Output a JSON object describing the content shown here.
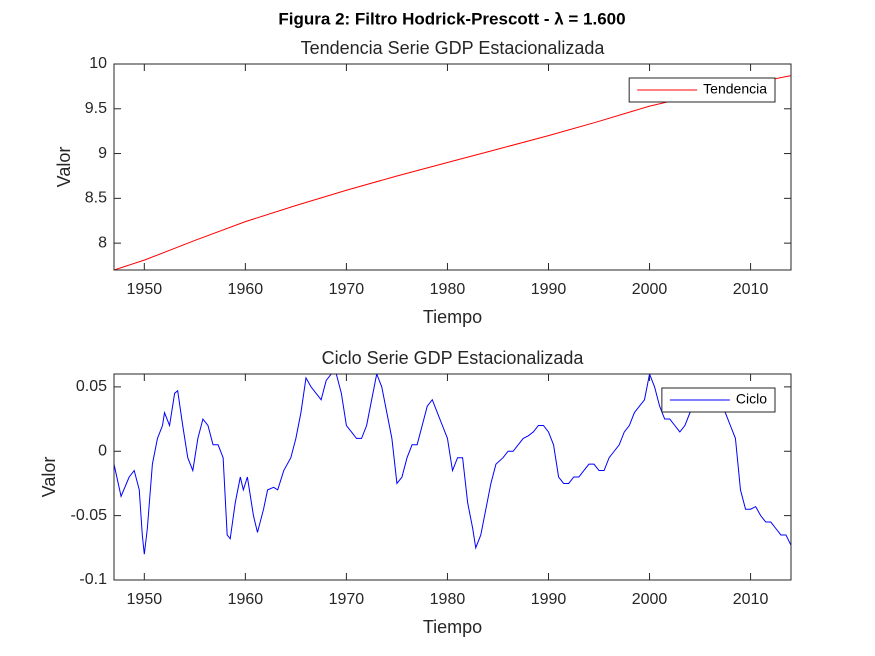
{
  "title": "Figura 2: Filtro Hodrick-Prescott - λ = 1.600",
  "chart_data": [
    {
      "type": "line",
      "title": "Tendencia Serie GDP Estacionalizada",
      "xlabel": "Tiempo",
      "ylabel": "Valor",
      "x": [
        1947,
        1950,
        1955,
        1960,
        1965,
        1970,
        1975,
        1980,
        1985,
        1990,
        1995,
        2000,
        2005,
        2010,
        2014
      ],
      "series": [
        {
          "name": "Tendencia",
          "color": "#ff0000",
          "values": [
            7.7,
            7.81,
            8.03,
            8.24,
            8.42,
            8.59,
            8.75,
            8.9,
            9.05,
            9.2,
            9.36,
            9.53,
            9.66,
            9.78,
            9.87
          ]
        }
      ],
      "xlim": [
        1947,
        2014
      ],
      "ylim": [
        7.7,
        10
      ],
      "xticks": [
        1950,
        1960,
        1970,
        1980,
        1990,
        2000,
        2010
      ],
      "yticks": [
        8,
        8.5,
        9,
        9.5,
        10
      ],
      "grid": false,
      "legend": "northeast"
    },
    {
      "type": "line",
      "title": "Ciclo Serie GDP Estacionalizada",
      "xlabel": "Tiempo",
      "ylabel": "Valor",
      "x": [
        1947.0,
        1947.7,
        1948.5,
        1949.0,
        1949.5,
        1949.8,
        1950.0,
        1950.3,
        1950.8,
        1951.3,
        1951.8,
        1952.0,
        1952.5,
        1953.0,
        1953.3,
        1953.8,
        1954.3,
        1954.8,
        1955.3,
        1955.8,
        1956.3,
        1956.8,
        1957.3,
        1957.8,
        1958.2,
        1958.5,
        1959.0,
        1959.5,
        1959.8,
        1960.2,
        1960.8,
        1961.2,
        1961.8,
        1962.2,
        1962.8,
        1963.2,
        1963.8,
        1964.5,
        1965.0,
        1965.5,
        1966.0,
        1966.5,
        1967.0,
        1967.5,
        1968.0,
        1968.5,
        1969.0,
        1969.5,
        1970.0,
        1970.5,
        1971.0,
        1971.5,
        1972.0,
        1972.5,
        1973.0,
        1973.5,
        1974.0,
        1974.5,
        1975.0,
        1975.5,
        1976.0,
        1976.5,
        1977.0,
        1977.5,
        1978.0,
        1978.5,
        1979.0,
        1979.5,
        1980.0,
        1980.5,
        1981.0,
        1981.5,
        1982.0,
        1982.5,
        1982.8,
        1983.3,
        1983.8,
        1984.3,
        1984.8,
        1985.5,
        1986.0,
        1986.5,
        1987.0,
        1987.5,
        1988.0,
        1988.5,
        1989.0,
        1989.5,
        1990.0,
        1990.5,
        1991.0,
        1991.5,
        1992.0,
        1992.5,
        1993.0,
        1993.5,
        1994.0,
        1994.5,
        1995.0,
        1995.5,
        1996.0,
        1996.5,
        1997.0,
        1997.5,
        1998.0,
        1998.5,
        1999.0,
        1999.5,
        2000.0,
        2000.5,
        2001.0,
        2001.5,
        2002.0,
        2002.5,
        2003.0,
        2003.5,
        2004.0,
        2005.0,
        2006.0,
        2007.0,
        2007.5,
        2008.0,
        2008.5,
        2009.0,
        2009.5,
        2010.0,
        2010.5,
        2011.0,
        2011.5,
        2012.0,
        2012.5,
        2013.0,
        2013.5,
        2014.0
      ],
      "series": [
        {
          "name": "Ciclo",
          "color": "#0000ff",
          "values": [
            -0.01,
            -0.035,
            -0.02,
            -0.015,
            -0.03,
            -0.065,
            -0.08,
            -0.06,
            -0.01,
            0.01,
            0.02,
            0.03,
            0.02,
            0.045,
            0.047,
            0.02,
            -0.005,
            -0.015,
            0.01,
            0.025,
            0.02,
            0.005,
            0.005,
            -0.005,
            -0.065,
            -0.068,
            -0.04,
            -0.02,
            -0.03,
            -0.02,
            -0.05,
            -0.063,
            -0.045,
            -0.03,
            -0.028,
            -0.03,
            -0.015,
            -0.005,
            0.01,
            0.03,
            0.057,
            0.05,
            0.045,
            0.04,
            0.055,
            0.06,
            0.06,
            0.045,
            0.02,
            0.015,
            0.01,
            0.01,
            0.02,
            0.04,
            0.06,
            0.05,
            0.03,
            0.01,
            -0.025,
            -0.02,
            -0.005,
            0.005,
            0.005,
            0.02,
            0.035,
            0.04,
            0.03,
            0.02,
            0.01,
            -0.015,
            -0.005,
            -0.005,
            -0.04,
            -0.06,
            -0.075,
            -0.065,
            -0.045,
            -0.025,
            -0.01,
            -0.005,
            0,
            0,
            0.005,
            0.01,
            0.012,
            0.015,
            0.02,
            0.02,
            0.015,
            0.005,
            -0.02,
            -0.025,
            -0.025,
            -0.02,
            -0.02,
            -0.015,
            -0.01,
            -0.01,
            -0.015,
            -0.015,
            -0.005,
            0,
            0.005,
            0.015,
            0.02,
            0.03,
            0.035,
            0.04,
            0.06,
            0.05,
            0.035,
            0.025,
            0.025,
            0.02,
            0.015,
            0.02,
            0.03,
            0.035,
            0.04,
            0.035,
            0.03,
            0.02,
            0.01,
            -0.03,
            -0.045,
            -0.045,
            -0.043,
            -0.05,
            -0.055,
            -0.055,
            -0.06,
            -0.065,
            -0.065,
            -0.073
          ]
        }
      ],
      "xlim": [
        1947,
        2014
      ],
      "ylim": [
        -0.1,
        0.06
      ],
      "xticks": [
        1950,
        1960,
        1970,
        1980,
        1990,
        2000,
        2010
      ],
      "yticks": [
        -0.1,
        -0.05,
        0,
        0.05
      ],
      "grid": false,
      "legend": "northeast"
    }
  ]
}
